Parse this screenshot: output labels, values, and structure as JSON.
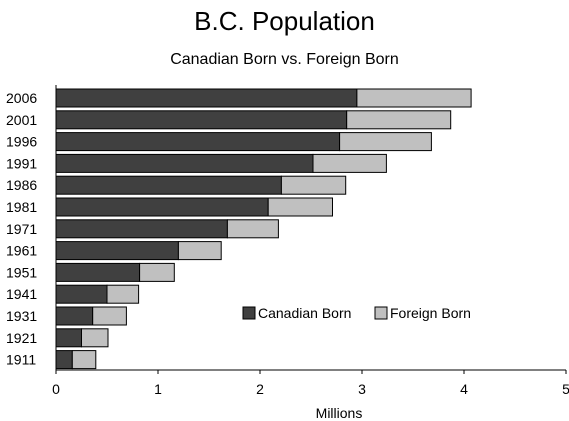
{
  "chart_data": {
    "type": "bar",
    "orientation": "horizontal",
    "stacked": true,
    "title": "B.C. Population",
    "subtitle": "Canadian Born vs. Foreign Born",
    "xlabel": "Millions",
    "ylabel": "",
    "xlim": [
      0,
      5
    ],
    "xticks": [
      0,
      1,
      2,
      3,
      4,
      5
    ],
    "categories": [
      "2006",
      "2001",
      "1996",
      "1991",
      "1986",
      "1981",
      "1971",
      "1961",
      "1951",
      "1941",
      "1931",
      "1921",
      "1911"
    ],
    "series": [
      {
        "name": "Canadian Born",
        "color": "#404040",
        "values": [
          2.95,
          2.85,
          2.78,
          2.52,
          2.21,
          2.08,
          1.68,
          1.2,
          0.82,
          0.5,
          0.36,
          0.25,
          0.16
        ]
      },
      {
        "name": "Foreign Born",
        "color": "#c0c0c0",
        "values": [
          1.12,
          1.02,
          0.9,
          0.72,
          0.63,
          0.63,
          0.5,
          0.42,
          0.34,
          0.31,
          0.33,
          0.26,
          0.23
        ]
      }
    ],
    "grid": false,
    "legend_position": "center-right"
  }
}
